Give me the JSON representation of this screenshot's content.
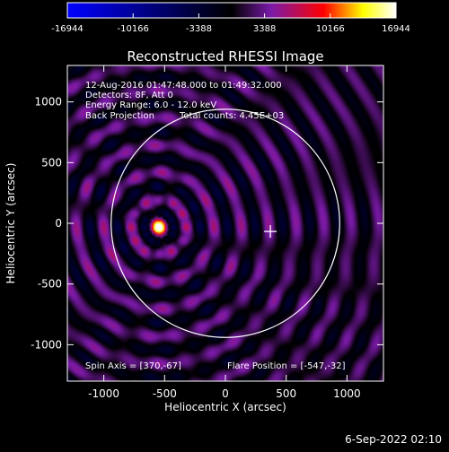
{
  "chart_data": {
    "type": "heatmap",
    "title": "Reconstructed RHESSI Image",
    "xlabel": "Heliocentric X (arcsec)",
    "ylabel": "Heliocentric Y (arcsec)",
    "xlim": [
      -1300,
      1300
    ],
    "ylim": [
      -1300,
      1300
    ],
    "xticks": [
      -1000,
      -500,
      0,
      500,
      1000
    ],
    "yticks": [
      -1000,
      -500,
      0,
      500,
      1000
    ],
    "colorbar": {
      "min": -16944,
      "max": 16944,
      "tick_values": [
        -16944,
        -10166,
        -3388,
        3388,
        10166,
        16944
      ],
      "tick_labels": [
        "-16944",
        "-10166",
        "-3388",
        "3388",
        "10166",
        "16944"
      ],
      "colors": [
        "#0000ff",
        "#000000",
        "#7a1aa8",
        "#ff0000",
        "#ffff00",
        "#ffffff"
      ]
    },
    "annotations": [
      "12-Aug-2016 01:47:48.000 to 01:49:32.000",
      "Detectors: 8F, Att 0",
      "Energy Range: 6.0 - 12.0 keV",
      "Back Projection",
      "Total counts: 4.45E+03"
    ],
    "spin_axis_label": "Spin Axis = [370,-67]",
    "flare_position_label": "Flare Position = [-547,-32]",
    "spin_axis": [
      370,
      -67
    ],
    "flare_position": [
      -547,
      -32
    ],
    "solar_radius": 940,
    "grid": false,
    "grating_period": 225,
    "source_peak": 16944
  },
  "footer": {
    "timestamp": "6-Sep-2022 02:10"
  }
}
